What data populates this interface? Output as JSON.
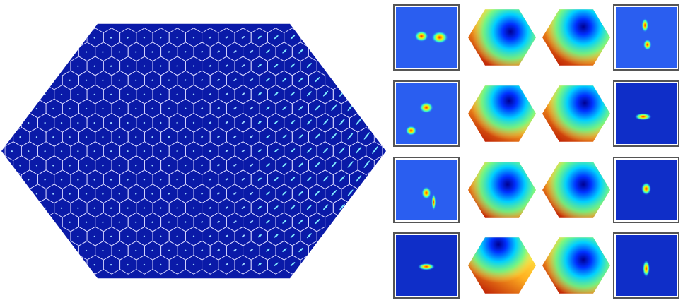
{
  "figure": {
    "colors": {
      "background": "#0a1aa8",
      "hex_border": "#d8d8ff",
      "spot": "#ffff66"
    },
    "left_panel": {
      "kind": "hexagonal-lenslet-array",
      "icon": "hexagon-grid"
    },
    "right_grid": {
      "rows": 4,
      "column_kinds": [
        "spot-image",
        "phase-map",
        "phase-map",
        "spot-image"
      ]
    }
  }
}
